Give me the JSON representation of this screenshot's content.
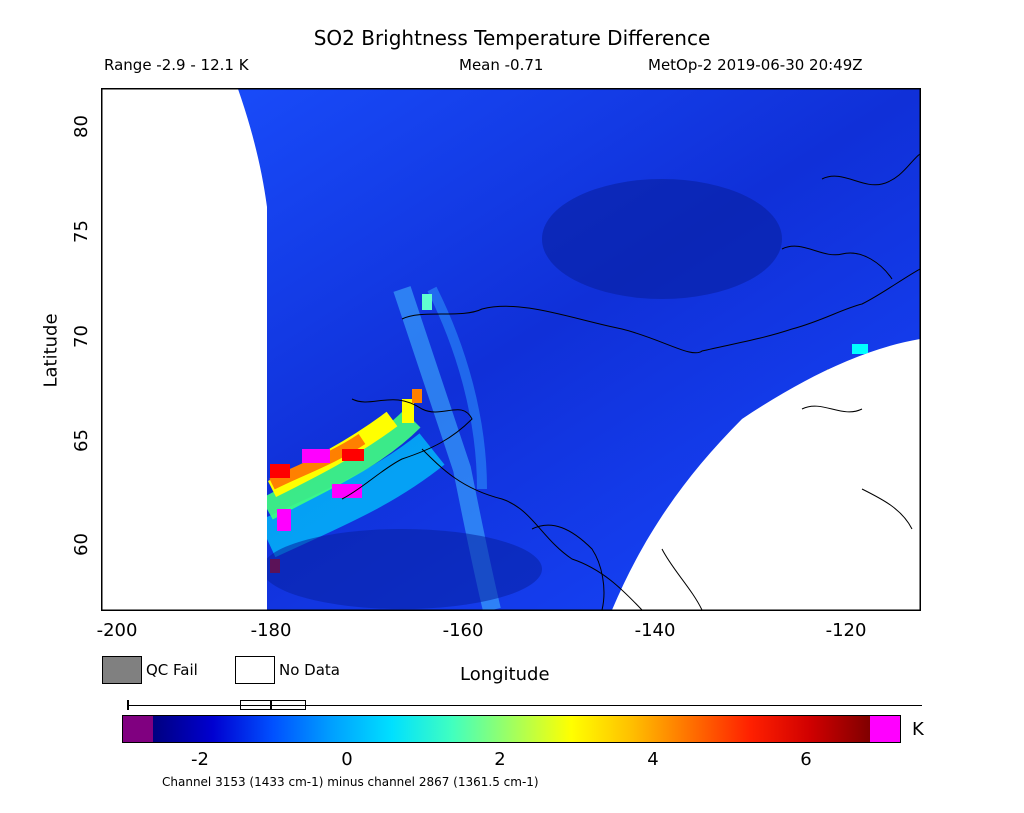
{
  "title": "SO2 Brightness Temperature Difference",
  "range_text": "Range -2.9 - 12.1 K",
  "mean_text": "Mean -0.71",
  "satellite_text": "MetOp-2 2019-06-30 20:49Z",
  "xlabel": "Longitude",
  "ylabel": "Latitude",
  "x_ticks": [
    "-200",
    "-180",
    "-160",
    "-140",
    "-120"
  ],
  "y_ticks": [
    "60",
    "65",
    "70",
    "75",
    "80"
  ],
  "legend": {
    "qc_fail": "QC Fail",
    "no_data": "No Data",
    "qc_color": "#808080"
  },
  "colorbar": {
    "ticks": [
      "-2",
      "0",
      "2",
      "4",
      "6"
    ],
    "unit": "K",
    "underflow_color": "#800080",
    "overflow_color": "#ff00ff",
    "stops": [
      "#000080",
      "#0000d0",
      "#0050ff",
      "#00a0ff",
      "#00e0ff",
      "#40ffc0",
      "#a0ff60",
      "#ffff00",
      "#ffc000",
      "#ff7000",
      "#ff2000",
      "#d00000",
      "#800000"
    ]
  },
  "footnote": "Channel 3153 (1433 cm-1) minus channel 2867 (1361.5 cm-1)",
  "map": {
    "lon_range": [
      -202,
      -110
    ],
    "lat_range": [
      57,
      82
    ],
    "bg_color": "#1030e0",
    "plume_colors": [
      "#ff00ff",
      "#ff0000",
      "#ff8000",
      "#ffff00",
      "#40ff80",
      "#00c0ff"
    ]
  }
}
